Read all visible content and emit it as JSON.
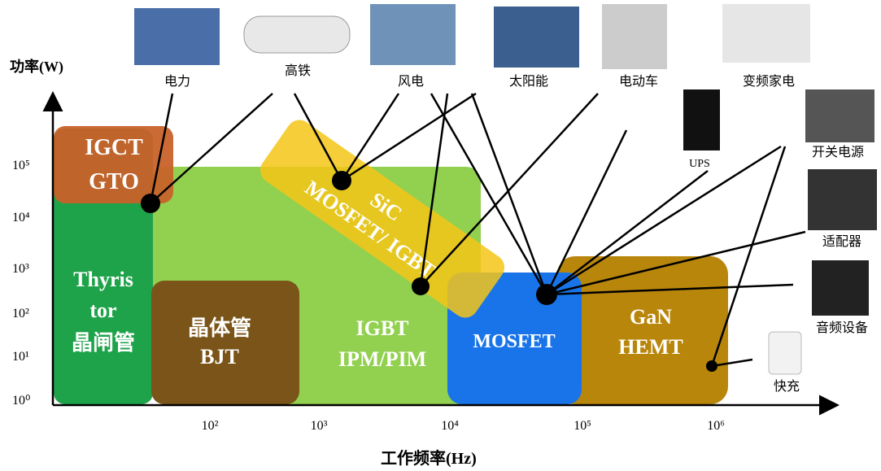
{
  "axes": {
    "y_label": "功率(W)",
    "x_label": "工作频率(Hz)",
    "y_ticks": [
      "10⁰",
      "10¹",
      "10²",
      "10³",
      "10⁴",
      "10⁵"
    ],
    "x_ticks": [
      "10²",
      "10³",
      "10⁴",
      "10⁵",
      "10⁶"
    ]
  },
  "regions": {
    "igct": [
      "IGCT",
      "GTO"
    ],
    "thyristor": [
      "Thyris",
      "tor",
      "晶闸管"
    ],
    "bjt": [
      "晶体管",
      "BJT"
    ],
    "igbt": [
      "IGBT",
      "IPM/PIM"
    ],
    "sic": [
      "SiC",
      "MOSFET/ IGBT"
    ],
    "mosfet": [
      "MOSFET"
    ],
    "gan": [
      "GaN",
      "HEMT"
    ]
  },
  "applications": [
    "电力",
    "高铁",
    "风电",
    "太阳能",
    "电动车",
    "变频家电",
    "UPS",
    "开关电源",
    "适配器",
    "音频设备",
    "快充"
  ]
}
